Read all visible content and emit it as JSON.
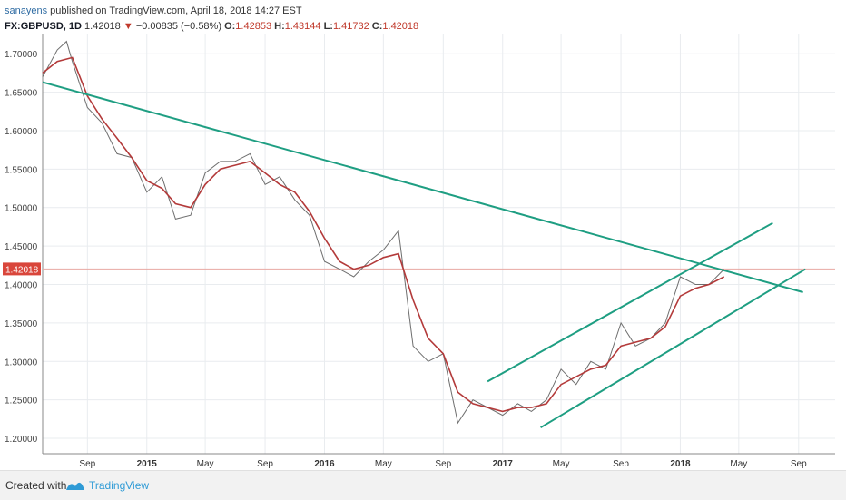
{
  "header": {
    "author": "sanayens",
    "published": "published on TradingView.com, April 18, 2018 14:27 EST",
    "symbol": "FX:GBPUSD, 1D",
    "price": "1.42018",
    "change": "−0.00835 (−0.58%)",
    "o_label": "O:",
    "o_value": "1.42853",
    "h_label": "H:",
    "h_value": "1.43144",
    "l_label": "L:",
    "l_value": "1.41732",
    "c_label": "C:",
    "c_value": "1.42018"
  },
  "footer": {
    "created_with": "Created with",
    "brand": "TradingView"
  },
  "colors": {
    "trendline": "#1e9e82",
    "ma": "#b33a3a",
    "price": "#6e6e6e",
    "last_price_tag": "#d9463b",
    "grid": "#e9ecef"
  },
  "chart_data": {
    "type": "line",
    "y_ticks": [
      "1.70000",
      "1.65000",
      "1.60000",
      "1.55000",
      "1.50000",
      "1.45000",
      "1.40000",
      "1.35000",
      "1.30000",
      "1.25000",
      "1.20000"
    ],
    "x_ticks": [
      {
        "label": "Sep",
        "date": "2014-09"
      },
      {
        "label": "2015",
        "date": "2015-01"
      },
      {
        "label": "May",
        "date": "2015-05"
      },
      {
        "label": "Sep",
        "date": "2015-09"
      },
      {
        "label": "2016",
        "date": "2016-01"
      },
      {
        "label": "May",
        "date": "2016-05"
      },
      {
        "label": "Sep",
        "date": "2016-09"
      },
      {
        "label": "2017",
        "date": "2017-01"
      },
      {
        "label": "May",
        "date": "2017-05"
      },
      {
        "label": "Sep",
        "date": "2017-09"
      },
      {
        "label": "2018",
        "date": "2018-01"
      },
      {
        "label": "May",
        "date": "2018-05"
      },
      {
        "label": "Sep",
        "date": "2018-09"
      }
    ],
    "last_price_label": "1.42018",
    "ylim": [
      1.18,
      1.725
    ],
    "grid": true,
    "series": [
      {
        "key": "price",
        "points": [
          [
            "2014-06",
            1.67
          ],
          [
            "2014-07",
            1.705
          ],
          [
            "2014-07-20",
            1.716
          ],
          [
            "2014-08",
            1.69
          ],
          [
            "2014-09",
            1.63
          ],
          [
            "2014-10",
            1.61
          ],
          [
            "2014-11",
            1.57
          ],
          [
            "2014-12",
            1.565
          ],
          [
            "2015-01",
            1.52
          ],
          [
            "2015-02",
            1.54
          ],
          [
            "2015-03",
            1.485
          ],
          [
            "2015-04",
            1.49
          ],
          [
            "2015-05",
            1.545
          ],
          [
            "2015-06",
            1.56
          ],
          [
            "2015-07",
            1.56
          ],
          [
            "2015-08",
            1.57
          ],
          [
            "2015-09",
            1.53
          ],
          [
            "2015-10",
            1.54
          ],
          [
            "2015-11",
            1.51
          ],
          [
            "2015-12",
            1.49
          ],
          [
            "2016-01",
            1.43
          ],
          [
            "2016-02",
            1.42
          ],
          [
            "2016-03",
            1.41
          ],
          [
            "2016-04",
            1.43
          ],
          [
            "2016-05",
            1.445
          ],
          [
            "2016-06",
            1.47
          ],
          [
            "2016-07",
            1.32
          ],
          [
            "2016-08",
            1.3
          ],
          [
            "2016-09",
            1.31
          ],
          [
            "2016-10",
            1.22
          ],
          [
            "2016-11",
            1.25
          ],
          [
            "2017-01",
            1.23
          ],
          [
            "2017-02",
            1.245
          ],
          [
            "2017-03",
            1.235
          ],
          [
            "2017-04",
            1.25
          ],
          [
            "2017-05",
            1.29
          ],
          [
            "2017-06",
            1.27
          ],
          [
            "2017-07",
            1.3
          ],
          [
            "2017-08",
            1.29
          ],
          [
            "2017-09",
            1.35
          ],
          [
            "2017-10",
            1.32
          ],
          [
            "2017-11",
            1.33
          ],
          [
            "2017-12",
            1.35
          ],
          [
            "2018-01",
            1.41
          ],
          [
            "2018-02",
            1.4
          ],
          [
            "2018-03",
            1.4
          ],
          [
            "2018-04",
            1.42
          ]
        ]
      },
      {
        "key": "moving_average",
        "points": [
          [
            "2014-06",
            1.675
          ],
          [
            "2014-07",
            1.69
          ],
          [
            "2014-08",
            1.695
          ],
          [
            "2014-09",
            1.645
          ],
          [
            "2014-10",
            1.615
          ],
          [
            "2014-11",
            1.59
          ],
          [
            "2014-12",
            1.565
          ],
          [
            "2015-01",
            1.535
          ],
          [
            "2015-02",
            1.525
          ],
          [
            "2015-03",
            1.505
          ],
          [
            "2015-04",
            1.5
          ],
          [
            "2015-05",
            1.53
          ],
          [
            "2015-06",
            1.55
          ],
          [
            "2015-07",
            1.555
          ],
          [
            "2015-08",
            1.56
          ],
          [
            "2015-09",
            1.545
          ],
          [
            "2015-10",
            1.53
          ],
          [
            "2015-11",
            1.52
          ],
          [
            "2015-12",
            1.495
          ],
          [
            "2016-01",
            1.46
          ],
          [
            "2016-02",
            1.43
          ],
          [
            "2016-03",
            1.42
          ],
          [
            "2016-04",
            1.425
          ],
          [
            "2016-05",
            1.435
          ],
          [
            "2016-06",
            1.44
          ],
          [
            "2016-07",
            1.38
          ],
          [
            "2016-08",
            1.33
          ],
          [
            "2016-09",
            1.31
          ],
          [
            "2016-10",
            1.26
          ],
          [
            "2016-11",
            1.245
          ],
          [
            "2017-01",
            1.235
          ],
          [
            "2017-02",
            1.24
          ],
          [
            "2017-03",
            1.24
          ],
          [
            "2017-04",
            1.245
          ],
          [
            "2017-05",
            1.27
          ],
          [
            "2017-06",
            1.28
          ],
          [
            "2017-07",
            1.29
          ],
          [
            "2017-08",
            1.295
          ],
          [
            "2017-09",
            1.32
          ],
          [
            "2017-10",
            1.325
          ],
          [
            "2017-11",
            1.33
          ],
          [
            "2017-12",
            1.345
          ],
          [
            "2018-01",
            1.385
          ],
          [
            "2018-02",
            1.395
          ],
          [
            "2018-03",
            1.4
          ],
          [
            "2018-04",
            1.41
          ]
        ]
      }
    ],
    "trendlines": [
      {
        "from": [
          "2014-06",
          1.663
        ],
        "to": [
          "2018-09-10",
          1.39
        ]
      },
      {
        "from": [
          "2016-12-01",
          1.274
        ],
        "to": [
          "2018-07-10",
          1.48
        ]
      },
      {
        "from": [
          "2017-03-20",
          1.214
        ],
        "to": [
          "2018-09-15",
          1.42
        ]
      }
    ]
  }
}
